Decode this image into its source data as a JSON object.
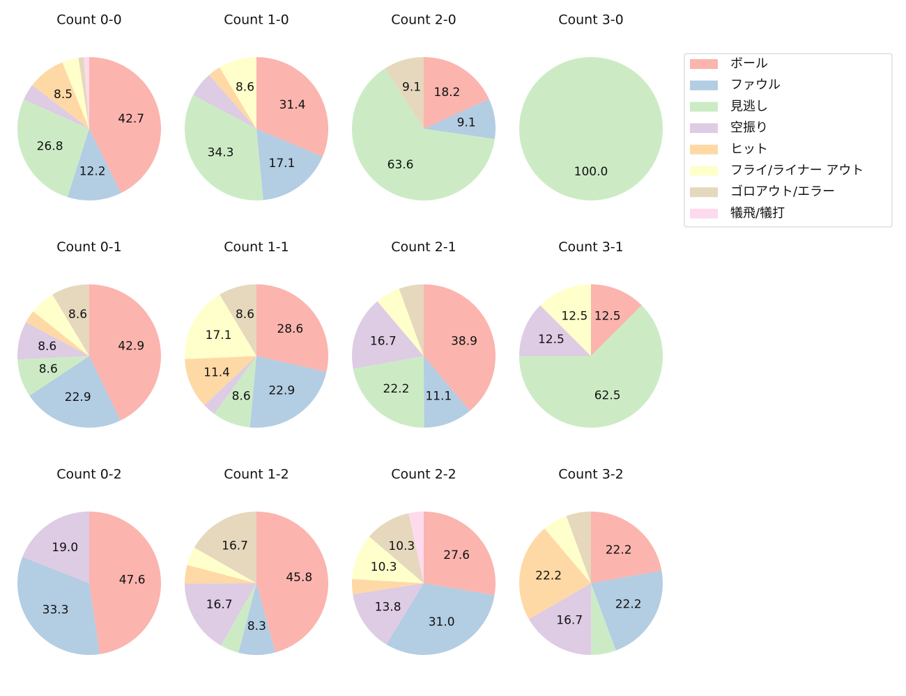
{
  "chart_data": [
    {
      "type": "pie",
      "title": "Count 0-0",
      "categories": [
        "ボール",
        "ファウル",
        "見逃し",
        "空振り",
        "ヒット",
        "フライ/ライナー アウト",
        "ゴロアウト/エラー",
        "犠飛/犠打"
      ],
      "values": [
        42.7,
        12.2,
        26.8,
        3.7,
        8.5,
        3.7,
        1.2,
        1.2
      ],
      "value_labels": [
        "42.7",
        "12.2",
        "26.8",
        null,
        "8.5",
        null,
        null,
        null
      ]
    },
    {
      "type": "pie",
      "title": "Count 1-0",
      "categories": [
        "ボール",
        "ファウル",
        "見逃し",
        "空振り",
        "ヒット",
        "フライ/ライナー アウト"
      ],
      "values": [
        31.4,
        17.1,
        34.3,
        5.7,
        2.9,
        8.6
      ],
      "value_labels": [
        "31.4",
        "17.1",
        "34.3",
        null,
        null,
        "8.6"
      ]
    },
    {
      "type": "pie",
      "title": "Count 2-0",
      "categories": [
        "ボール",
        "ファウル",
        "見逃し",
        "ゴロアウト/エラー"
      ],
      "values": [
        18.2,
        9.1,
        63.6,
        9.1
      ],
      "value_labels": [
        "18.2",
        "9.1",
        "63.6",
        "9.1"
      ]
    },
    {
      "type": "pie",
      "title": "Count 3-0",
      "categories": [
        "見逃し"
      ],
      "values": [
        100
      ],
      "value_labels": [
        "100.0"
      ]
    },
    {
      "type": "pie",
      "title": "Count 0-1",
      "categories": [
        "ボール",
        "ファウル",
        "見逃し",
        "空振り",
        "ヒット",
        "フライ/ライナー アウト",
        "ゴロアウト/エラー"
      ],
      "values": [
        42.9,
        22.9,
        8.6,
        8.6,
        2.9,
        5.7,
        8.6
      ],
      "value_labels": [
        "42.9",
        "22.9",
        "8.6",
        "8.6",
        null,
        null,
        "8.6"
      ]
    },
    {
      "type": "pie",
      "title": "Count 1-1",
      "categories": [
        "ボール",
        "ファウル",
        "見逃し",
        "空振り",
        "ヒット",
        "フライ/ライナー アウト",
        "ゴロアウト/エラー"
      ],
      "values": [
        28.6,
        22.9,
        8.6,
        2.9,
        11.4,
        17.1,
        8.6
      ],
      "value_labels": [
        "28.6",
        "22.9",
        "8.6",
        null,
        "11.4",
        "17.1",
        "8.6"
      ]
    },
    {
      "type": "pie",
      "title": "Count 2-1",
      "categories": [
        "ボール",
        "ファウル",
        "見逃し",
        "空振り",
        "フライ/ライナー アウト",
        "ゴロアウト/エラー"
      ],
      "values": [
        38.9,
        11.1,
        22.2,
        16.7,
        5.6,
        5.6
      ],
      "value_labels": [
        "38.9",
        "11.1",
        "22.2",
        "16.7",
        null,
        null
      ]
    },
    {
      "type": "pie",
      "title": "Count 3-1",
      "categories": [
        "ボール",
        "見逃し",
        "空振り",
        "フライ/ライナー アウト"
      ],
      "values": [
        12.5,
        62.5,
        12.5,
        12.5
      ],
      "value_labels": [
        "12.5",
        "62.5",
        "12.5",
        "12.5"
      ]
    },
    {
      "type": "pie",
      "title": "Count 0-2",
      "categories": [
        "ボール",
        "ファウル",
        "空振り"
      ],
      "values": [
        47.6,
        33.3,
        19.0
      ],
      "value_labels": [
        "47.6",
        "33.3",
        "19.0"
      ]
    },
    {
      "type": "pie",
      "title": "Count 1-2",
      "categories": [
        "ボール",
        "ファウル",
        "見逃し",
        "空振り",
        "ヒット",
        "フライ/ライナー アウト",
        "ゴロアウト/エラー"
      ],
      "values": [
        45.8,
        8.3,
        4.2,
        16.7,
        4.2,
        4.2,
        16.7
      ],
      "value_labels": [
        "45.8",
        "8.3",
        null,
        "16.7",
        null,
        null,
        "16.7"
      ]
    },
    {
      "type": "pie",
      "title": "Count 2-2",
      "categories": [
        "ボール",
        "ファウル",
        "空振り",
        "ヒット",
        "フライ/ライナー アウト",
        "ゴロアウト/エラー",
        "犠飛/犠打"
      ],
      "values": [
        27.6,
        31.0,
        13.8,
        3.4,
        10.3,
        10.3,
        3.4
      ],
      "value_labels": [
        "27.6",
        "31.0",
        "13.8",
        null,
        "10.3",
        "10.3",
        null
      ]
    },
    {
      "type": "pie",
      "title": "Count 3-2",
      "categories": [
        "ボール",
        "ファウル",
        "見逃し",
        "空振り",
        "ヒット",
        "フライ/ライナー アウト",
        "ゴロアウト/エラー"
      ],
      "values": [
        22.2,
        22.2,
        5.6,
        16.7,
        22.2,
        5.6,
        5.6
      ],
      "value_labels": [
        "22.2",
        "22.2",
        null,
        "16.7",
        "22.2",
        null,
        null
      ]
    }
  ],
  "legend": {
    "labels": [
      "ボール",
      "ファウル",
      "見逃し",
      "空振り",
      "ヒット",
      "フライ/ライナー アウト",
      "ゴロアウト/エラー",
      "犠飛/犠打"
    ],
    "colors": [
      "#fbb4ae",
      "#b3cde3",
      "#ccebc5",
      "#decbe4",
      "#fed9a6",
      "#ffffcc",
      "#e5d8bd",
      "#fddaec"
    ]
  }
}
